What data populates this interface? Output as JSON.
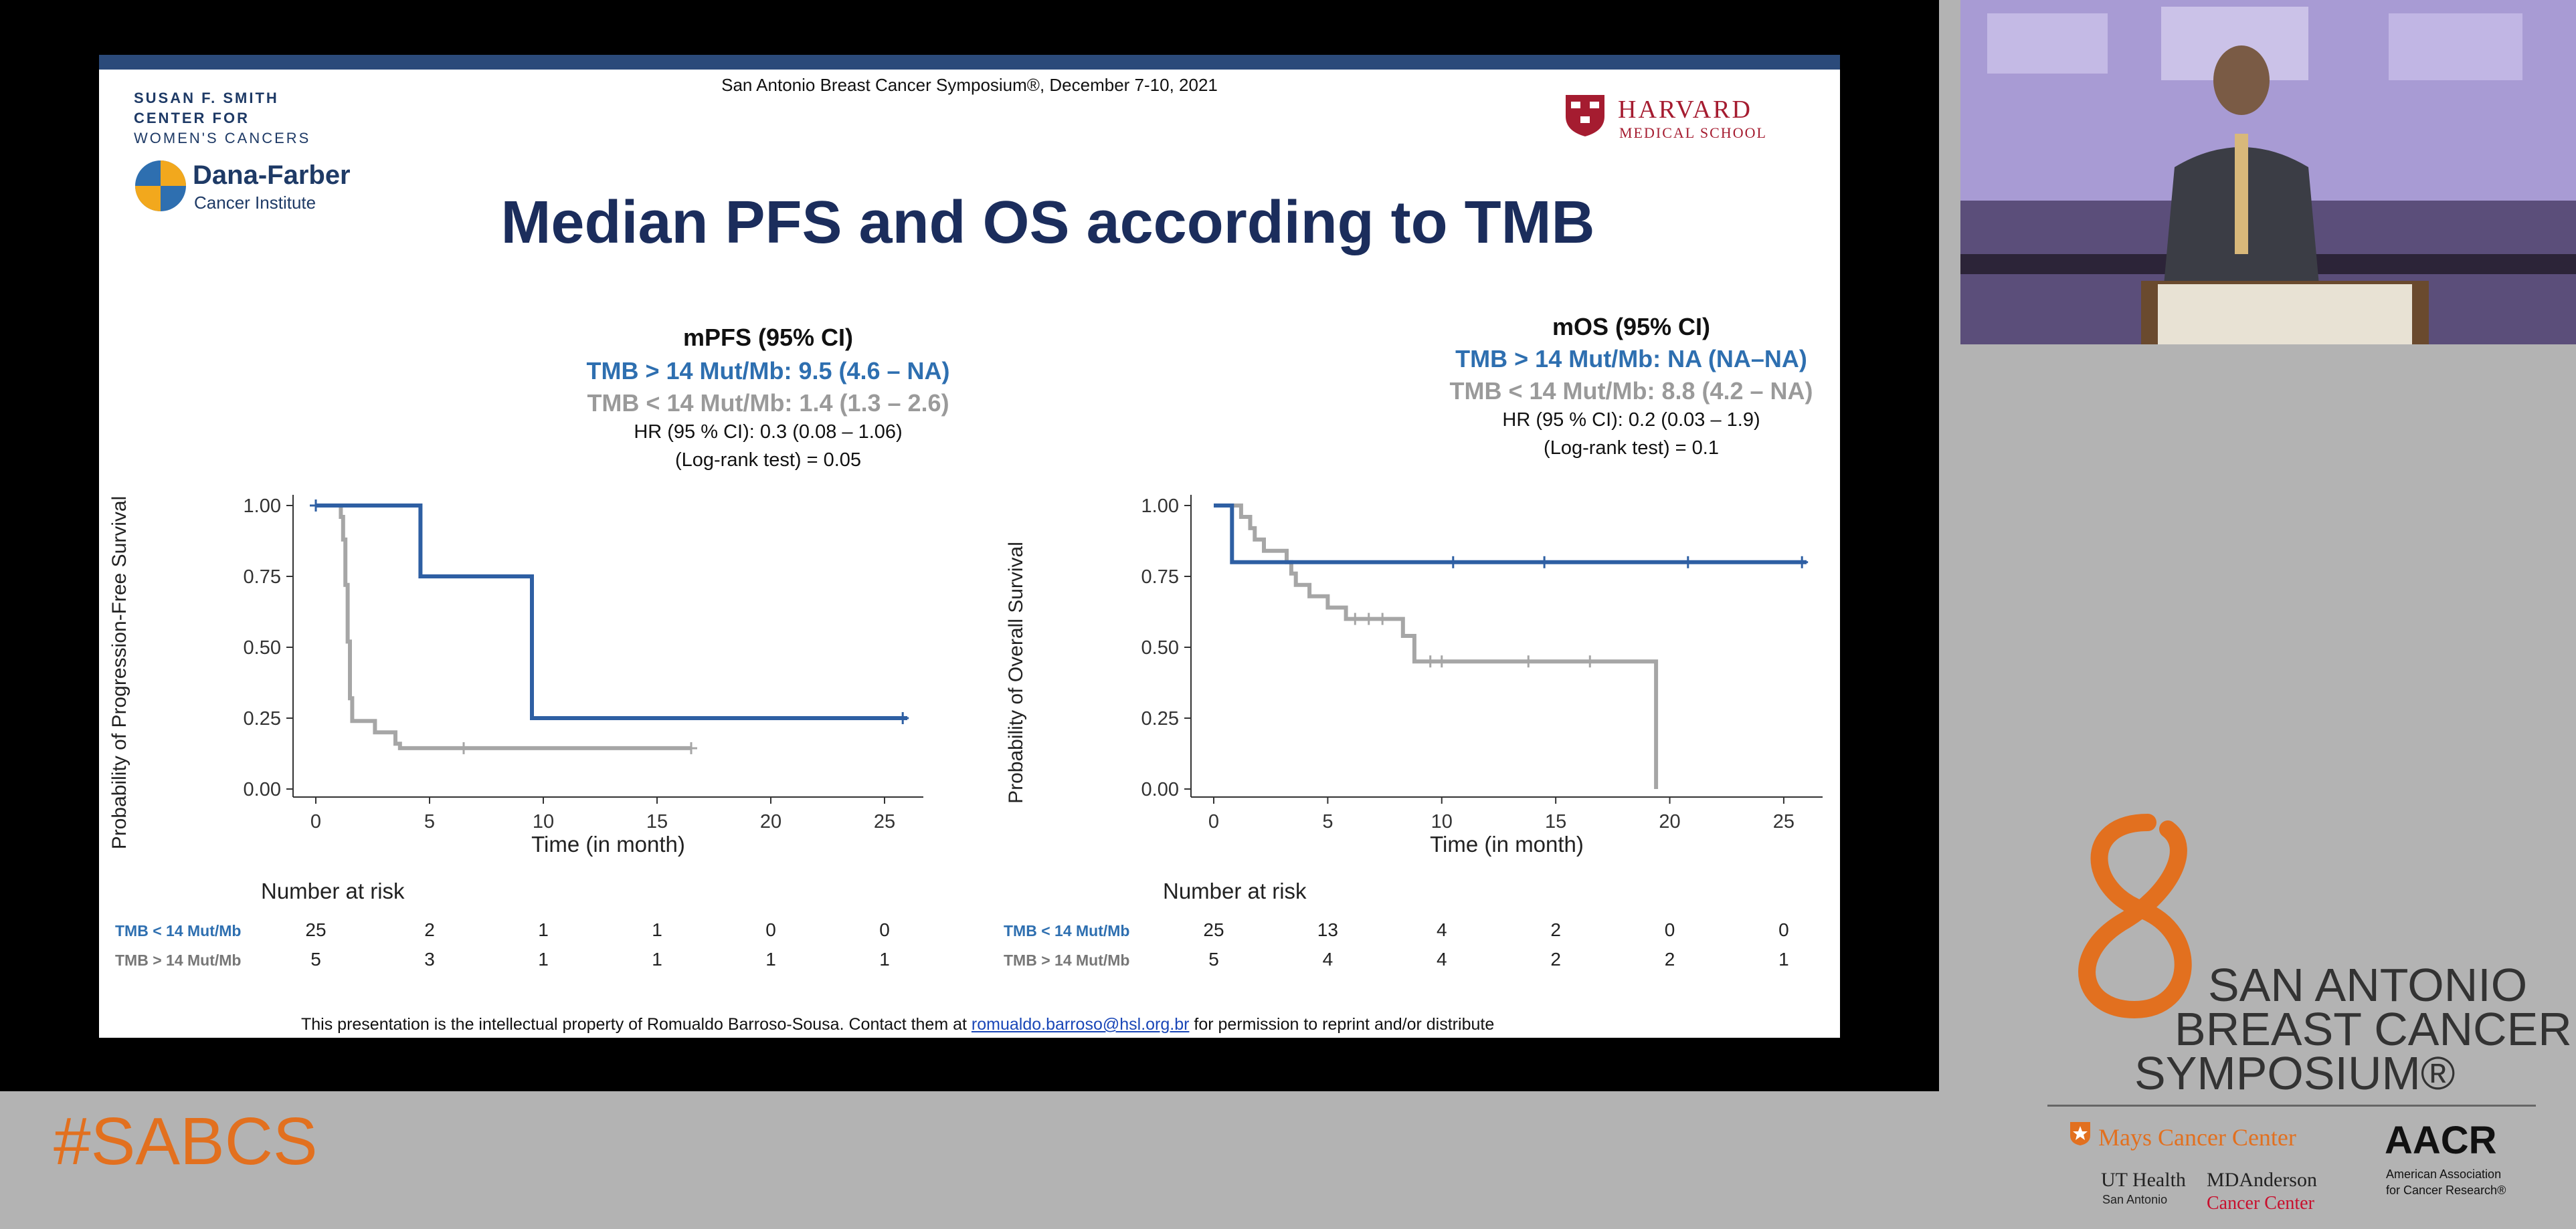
{
  "slide": {
    "conference": "San Antonio Breast Cancer Symposium®, December 7-10, 2021",
    "logo_left": {
      "line1": "SUSAN F. SMITH",
      "line2": "CENTER FOR",
      "line3": "WOMEN'S CANCERS",
      "df_name": "Dana-Farber",
      "df_sub": "Cancer Institute"
    },
    "logo_right": {
      "line1": "HARVARD",
      "line2": "MEDICAL SCHOOL"
    },
    "title": "Median PFS and OS according to TMB",
    "footer_prefix": "This presentation is the intellectual property of Romualdo Barroso-Sousa. Contact them at",
    "footer_email": "romualdo.barroso@hsl.org.br",
    "footer_suffix": "for permission to reprint and/or distribute"
  },
  "colors": {
    "high": "#2e5fa3",
    "low": "#a6a6a6",
    "title": "#1b2d5c",
    "accent": "#e2701f"
  },
  "chart_data": [
    {
      "type": "line",
      "stats": {
        "heading": "mPFS (95% CI)",
        "high": "TMB > 14 Mut/Mb: 9.5 (4.6 – NA)",
        "low": "TMB < 14 Mut/Mb: 1.4 (1.3 – 2.6)",
        "hr": "HR (95 % CI): 0.3 (0.08 – 1.06)",
        "logrank": "(Log-rank test) = 0.05"
      },
      "ylabel": "Probability of Progression-Free Survival",
      "xlabel": "Time (in month)",
      "xlim": [
        0,
        26
      ],
      "ylim": [
        0,
        1
      ],
      "xticks": [
        "0",
        "5",
        "10",
        "15",
        "20",
        "25"
      ],
      "yticks": [
        "0.00",
        "0.25",
        "0.50",
        "0.75",
        "1.00"
      ],
      "series": [
        {
          "group": "high",
          "points": [
            [
              0,
              1
            ],
            [
              4.6,
              1
            ],
            [
              4.6,
              0.75
            ],
            [
              9.5,
              0.75
            ],
            [
              9.5,
              0.25
            ],
            [
              26,
              0.25
            ]
          ],
          "censor": [
            [
              0,
              1
            ],
            [
              25.8,
              0.25
            ]
          ]
        },
        {
          "group": "low",
          "points": [
            [
              0,
              1
            ],
            [
              1.1,
              1
            ],
            [
              1.1,
              0.96
            ],
            [
              1.2,
              0.96
            ],
            [
              1.2,
              0.88
            ],
            [
              1.3,
              0.88
            ],
            [
              1.3,
              0.72
            ],
            [
              1.4,
              0.72
            ],
            [
              1.4,
              0.52
            ],
            [
              1.5,
              0.52
            ],
            [
              1.5,
              0.32
            ],
            [
              1.6,
              0.32
            ],
            [
              1.6,
              0.24
            ],
            [
              2.6,
              0.24
            ],
            [
              2.6,
              0.2
            ],
            [
              3.5,
              0.2
            ],
            [
              3.5,
              0.16
            ],
            [
              3.7,
              0.16
            ],
            [
              3.7,
              0.144
            ],
            [
              16.5,
              0.144
            ]
          ],
          "censor": [
            [
              6.5,
              0.144
            ],
            [
              16.5,
              0.144
            ]
          ]
        }
      ],
      "risk_table": {
        "title": "Number at risk",
        "rows": [
          {
            "label": "TMB < 14 Mut/Mb",
            "group": "low",
            "values": [
              "25",
              "2",
              "1",
              "1",
              "0",
              "0"
            ]
          },
          {
            "label": "TMB > 14 Mut/Mb",
            "group": "high",
            "values": [
              "5",
              "3",
              "1",
              "1",
              "1",
              "1"
            ]
          }
        ]
      }
    },
    {
      "type": "line",
      "stats": {
        "heading": "mOS (95% CI)",
        "high": "TMB > 14 Mut/Mb: NA (NA–NA)",
        "low": "TMB < 14 Mut/Mb: 8.8 (4.2 – NA)",
        "hr": "HR (95 % CI): 0.2 (0.03 – 1.9)",
        "logrank": "(Log-rank test) = 0.1"
      },
      "ylabel": "Probability of Overall Survival",
      "xlabel": "Time (in month)",
      "xlim": [
        0,
        26
      ],
      "ylim": [
        0,
        1
      ],
      "xticks": [
        "0",
        "5",
        "10",
        "15",
        "20",
        "25"
      ],
      "yticks": [
        "0.00",
        "0.25",
        "0.50",
        "0.75",
        "1.00"
      ],
      "series": [
        {
          "group": "high",
          "points": [
            [
              0,
              1
            ],
            [
              0.8,
              1
            ],
            [
              0.8,
              0.8
            ],
            [
              26,
              0.8
            ]
          ],
          "censor": [
            [
              10.5,
              0.8
            ],
            [
              14.5,
              0.8
            ],
            [
              20.8,
              0.8
            ],
            [
              25.8,
              0.8
            ]
          ]
        },
        {
          "group": "low",
          "points": [
            [
              0,
              1
            ],
            [
              1.2,
              1
            ],
            [
              1.2,
              0.96
            ],
            [
              1.6,
              0.96
            ],
            [
              1.6,
              0.92
            ],
            [
              1.8,
              0.92
            ],
            [
              1.8,
              0.88
            ],
            [
              2.2,
              0.88
            ],
            [
              2.2,
              0.84
            ],
            [
              3.2,
              0.84
            ],
            [
              3.2,
              0.8
            ],
            [
              3.4,
              0.8
            ],
            [
              3.4,
              0.76
            ],
            [
              3.6,
              0.76
            ],
            [
              3.6,
              0.72
            ],
            [
              4.2,
              0.72
            ],
            [
              4.2,
              0.68
            ],
            [
              5,
              0.68
            ],
            [
              5,
              0.64
            ],
            [
              5.8,
              0.64
            ],
            [
              5.8,
              0.6
            ],
            [
              8.3,
              0.6
            ],
            [
              8.3,
              0.54
            ],
            [
              8.8,
              0.54
            ],
            [
              8.8,
              0.45
            ],
            [
              19.4,
              0.45
            ],
            [
              19.4,
              0
            ]
          ],
          "censor": [
            [
              6.2,
              0.6
            ],
            [
              6.8,
              0.6
            ],
            [
              7.4,
              0.6
            ],
            [
              9.5,
              0.45
            ],
            [
              10,
              0.45
            ],
            [
              13.8,
              0.45
            ],
            [
              16.5,
              0.45
            ]
          ]
        }
      ],
      "risk_table": {
        "title": "Number at risk",
        "rows": [
          {
            "label": "TMB < 14 Mut/Mb",
            "group": "low",
            "values": [
              "25",
              "13",
              "4",
              "2",
              "0",
              "0"
            ]
          },
          {
            "label": "TMB > 14 Mut/Mb",
            "group": "high",
            "values": [
              "5",
              "4",
              "4",
              "2",
              "2",
              "1"
            ]
          }
        ]
      }
    }
  ],
  "sidebar": {
    "hashtag": "#SABCS",
    "symposium": {
      "line1": "SAN ANTONIO",
      "line2": "BREAST CANCER",
      "line3": "SYMPOSIUM®"
    },
    "sponsors": {
      "mays": "Mays Cancer Center",
      "ut": "UT Health",
      "ut_sub": "San Antonio",
      "mda": "MDAnderson",
      "mda_sub": "Cancer Center",
      "aacr": "AACR",
      "aacr_sub1": "American Association",
      "aacr_sub2": "for Cancer Research®"
    }
  }
}
